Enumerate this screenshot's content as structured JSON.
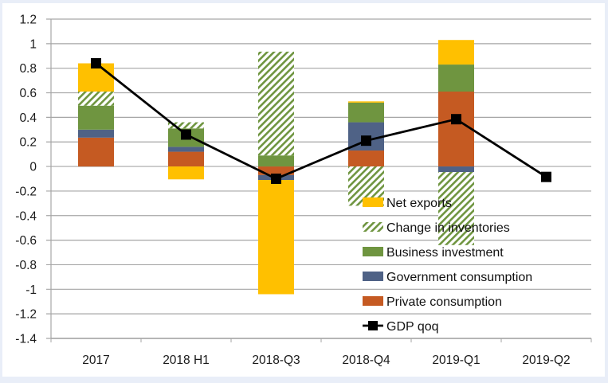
{
  "chart_data": {
    "type": "bar",
    "subtype": "stacked-bar-with-line",
    "title": "",
    "xlabel": "",
    "ylabel": "",
    "categories": [
      "2017",
      "2018 H1",
      "2018-Q3",
      "2018-Q4",
      "2019-Q1",
      "2019-Q2"
    ],
    "ylim": [
      -1.4,
      1.2
    ],
    "yticks": [
      1.2,
      1,
      0.8,
      0.6,
      0.4,
      0.2,
      0,
      -0.2,
      -0.4,
      -0.6,
      -0.8,
      -1,
      -1.2,
      -1.4
    ],
    "ytick_labels": [
      "1.2",
      "1",
      "0.8",
      "0.6",
      "0.4",
      "0.2",
      "0",
      "-0.2",
      "-0.4",
      "-0.6",
      "-0.8",
      "-1",
      "-1.2",
      "-1.4"
    ],
    "grid": true,
    "legend_position": "bottom-right-inside",
    "series": [
      {
        "name": "Private consumption",
        "kind": "bar",
        "color": "#c55a22",
        "pattern": "solid",
        "values": [
          0.235,
          0.12,
          -0.07,
          0.13,
          0.61,
          null
        ]
      },
      {
        "name": "Government consumption",
        "kind": "bar",
        "color": "#4f6286",
        "pattern": "solid",
        "values": [
          0.065,
          0.04,
          -0.04,
          0.23,
          -0.045,
          null
        ]
      },
      {
        "name": "Business investment",
        "kind": "bar",
        "color": "#6f9540",
        "pattern": "solid",
        "values": [
          0.195,
          0.15,
          0.09,
          0.16,
          0.22,
          null
        ]
      },
      {
        "name": "Change in inventories",
        "kind": "bar",
        "color": "#6f9540",
        "pattern": "hatch",
        "values": [
          0.115,
          0.05,
          0.845,
          -0.32,
          -0.595,
          null
        ]
      },
      {
        "name": "Net exports",
        "kind": "bar",
        "color": "#ffc000",
        "pattern": "solid",
        "values": [
          0.23,
          -0.105,
          -0.93,
          0.01,
          0.2,
          null
        ]
      },
      {
        "name": "GDP qoq",
        "kind": "line",
        "color": "#000000",
        "marker": "square",
        "values": [
          0.84,
          0.26,
          -0.1,
          0.21,
          0.385,
          -0.085
        ]
      }
    ],
    "legend_order": [
      "Net exports",
      "Change in inventories",
      "Business investment",
      "Government consumption",
      "Private consumption",
      "GDP qoq"
    ]
  }
}
